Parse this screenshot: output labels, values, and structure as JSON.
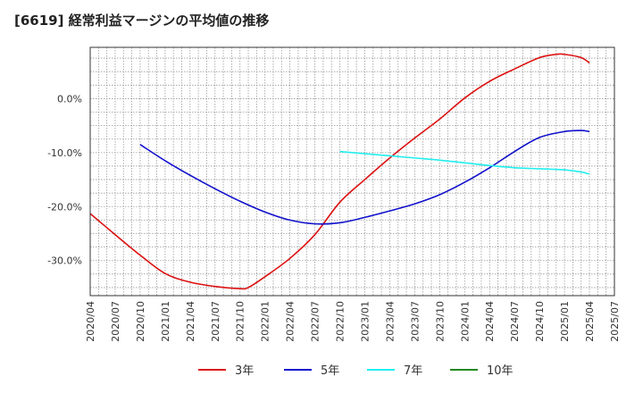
{
  "chart_data": {
    "type": "line",
    "title": "[6619]  経常利益マージンの平均値の推移",
    "xlabel": "",
    "ylabel": "",
    "x_ticks": [
      "2020/04",
      "2020/07",
      "2020/10",
      "2021/01",
      "2021/04",
      "2021/07",
      "2021/10",
      "2022/01",
      "2022/04",
      "2022/07",
      "2022/10",
      "2023/01",
      "2023/04",
      "2023/07",
      "2023/10",
      "2024/01",
      "2024/04",
      "2024/07",
      "2024/10",
      "2025/01",
      "2025/04",
      "2025/07"
    ],
    "y_ticks": [
      "0.0%",
      "-10.0%",
      "-20.0%",
      "-30.0%"
    ],
    "y_tick_values": [
      0,
      -10,
      -20,
      -30
    ],
    "ylim": [
      -36.5,
      9.5
    ],
    "grid": true,
    "legend_position": "bottom",
    "series": [
      {
        "name": "3年",
        "color": "#dd1111",
        "x": [
          "2020/04",
          "2020/07",
          "2020/10",
          "2021/01",
          "2021/04",
          "2021/07",
          "2021/10",
          "2021/11",
          "2022/01",
          "2022/04",
          "2022/07",
          "2022/10",
          "2023/01",
          "2023/04",
          "2023/07",
          "2023/10",
          "2024/01",
          "2024/04",
          "2024/07",
          "2024/10",
          "2024/12",
          "2025/01",
          "2025/03",
          "2025/04"
        ],
        "values": [
          -21.3,
          -25.2,
          -29.0,
          -32.4,
          -34.0,
          -34.8,
          -35.2,
          -35.0,
          -33.0,
          -29.6,
          -25.2,
          -19.2,
          -15.0,
          -11.0,
          -7.3,
          -3.8,
          0.1,
          3.2,
          5.5,
          7.6,
          8.2,
          8.2,
          7.6,
          6.6
        ]
      },
      {
        "name": "5年",
        "color": "#1111cc",
        "x": [
          "2020/10",
          "2021/01",
          "2021/04",
          "2021/07",
          "2021/10",
          "2022/01",
          "2022/04",
          "2022/07",
          "2022/10",
          "2023/01",
          "2023/04",
          "2023/07",
          "2023/10",
          "2024/01",
          "2024/04",
          "2024/07",
          "2024/10",
          "2025/01",
          "2025/03",
          "2025/04"
        ],
        "values": [
          -8.5,
          -11.5,
          -14.2,
          -16.7,
          -19.0,
          -21.0,
          -22.5,
          -23.2,
          -23.0,
          -22.0,
          -20.8,
          -19.5,
          -17.8,
          -15.5,
          -12.8,
          -9.8,
          -7.2,
          -6.1,
          -5.9,
          -6.1
        ]
      },
      {
        "name": "7年",
        "color": "#22eeee",
        "x": [
          "2022/10",
          "2023/01",
          "2023/04",
          "2023/07",
          "2023/10",
          "2024/01",
          "2024/04",
          "2024/07",
          "2024/10",
          "2025/01",
          "2025/03",
          "2025/04"
        ],
        "values": [
          -9.8,
          -10.2,
          -10.6,
          -11.0,
          -11.4,
          -11.9,
          -12.4,
          -12.8,
          -13.0,
          -13.2,
          -13.6,
          -14.0
        ]
      },
      {
        "name": "10年",
        "color": "#228822",
        "x": [],
        "values": []
      }
    ]
  }
}
